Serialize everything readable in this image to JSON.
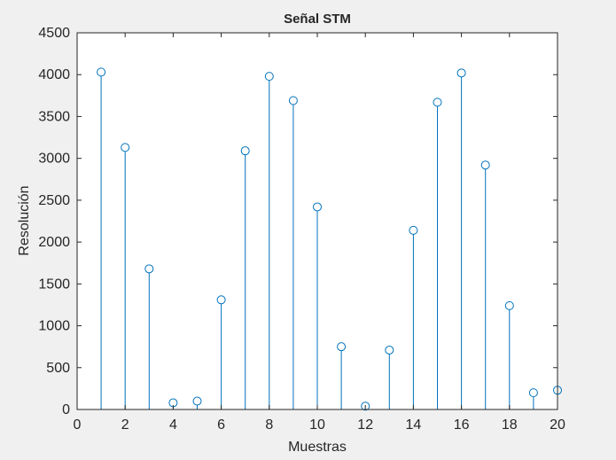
{
  "chart_data": {
    "type": "stem",
    "title": "Señal STM",
    "xlabel": "Muestras",
    "ylabel": "Resolución",
    "xlim": [
      0,
      20
    ],
    "ylim": [
      0,
      4500
    ],
    "xticks": [
      0,
      2,
      4,
      6,
      8,
      10,
      12,
      14,
      16,
      18,
      20
    ],
    "yticks": [
      0,
      500,
      1000,
      1500,
      2000,
      2500,
      3000,
      3500,
      4000,
      4500
    ],
    "x": [
      1,
      2,
      3,
      4,
      5,
      6,
      7,
      8,
      9,
      10,
      11,
      12,
      13,
      14,
      15,
      16,
      17,
      18,
      19,
      20
    ],
    "values": [
      4030,
      3130,
      1680,
      80,
      100,
      1310,
      3090,
      3980,
      3690,
      2420,
      750,
      40,
      710,
      2140,
      3670,
      4020,
      2920,
      1240,
      200,
      230
    ],
    "grid": false,
    "colors": {
      "series": "#0072BD",
      "axes": "#262626",
      "figure_bg": "#f0f0f0",
      "axes_bg": "#ffffff"
    }
  }
}
